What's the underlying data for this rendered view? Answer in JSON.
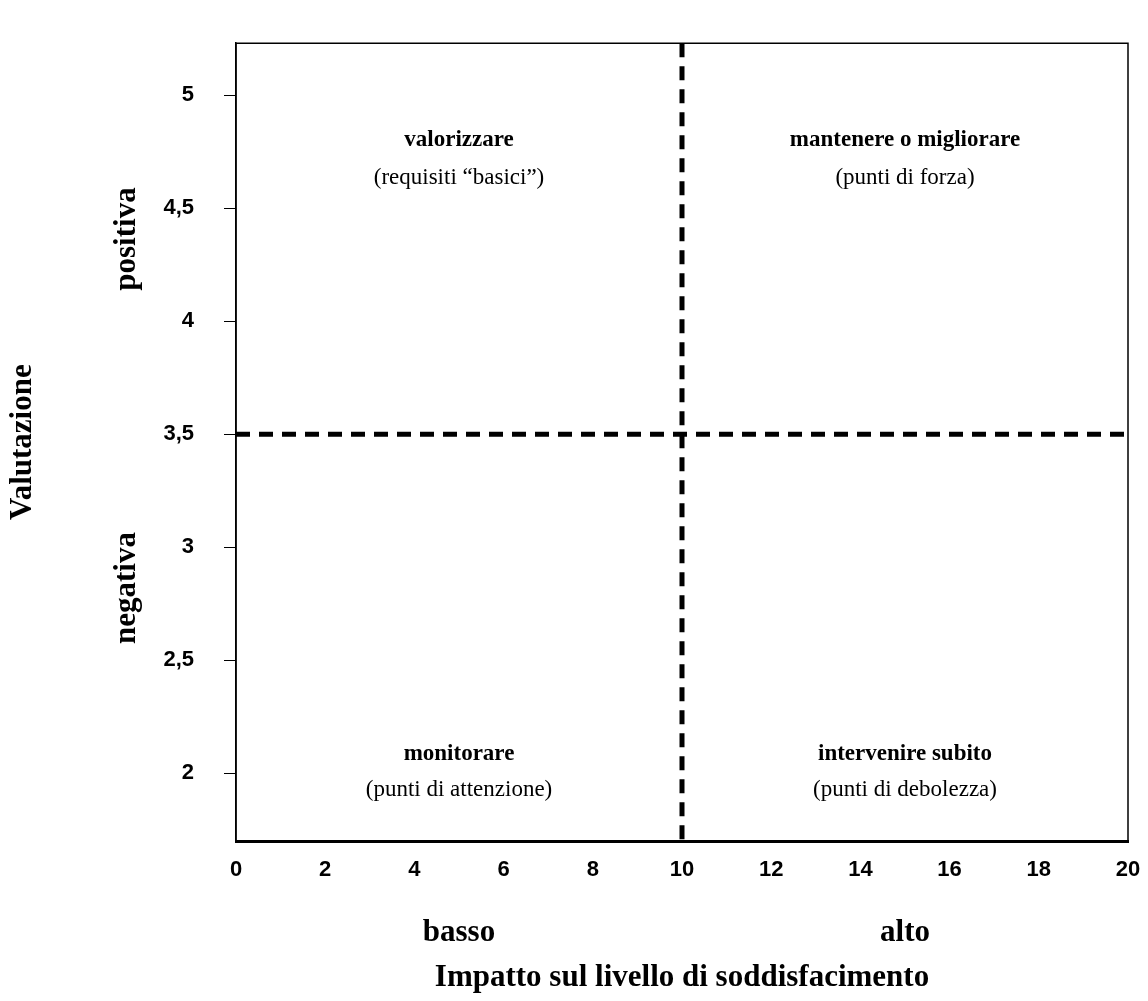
{
  "chart_data": {
    "type": "scatter",
    "xlabel": "Impatto sul livello di soddisfacimento",
    "ylabel": "Valutazione",
    "xlim": [
      0,
      20
    ],
    "ylim": [
      1.7,
      5.23
    ],
    "xticks": [
      0,
      2,
      4,
      6,
      8,
      10,
      12,
      14,
      16,
      18,
      20
    ],
    "yticks": [
      2,
      {
        "value": 2.5,
        "label": "2,5"
      },
      3,
      {
        "value": 3.5,
        "label": "3,5"
      },
      4,
      {
        "value": 4.5,
        "label": "4,5"
      },
      5
    ],
    "grid": false,
    "ref_lines": [
      {
        "axis": "x",
        "value": 10,
        "color": "#000000",
        "line_style": "dashed"
      },
      {
        "axis": "y",
        "value": 3.5,
        "color": "#000000",
        "line_style": "dashed"
      }
    ],
    "annotations": [
      "valorizzare",
      "(requisiti “basici”)",
      "mantenere o migliorare",
      "(punti di forza)",
      "monitorare",
      "(punti di attenzione)",
      "intervenire subito",
      "(punti di debolezza)",
      "basso",
      "alto",
      "positiva",
      "negativa"
    ]
  }
}
